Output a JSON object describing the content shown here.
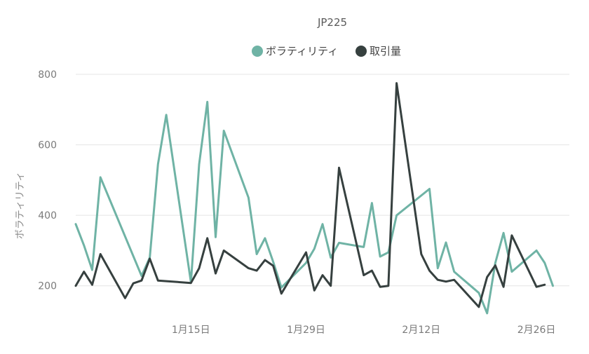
{
  "chart_data": {
    "type": "line",
    "title": "JP225",
    "xlabel": "",
    "ylabel": "ボラティリティ",
    "ylim": [
      100,
      820
    ],
    "yticks": [
      200,
      400,
      600,
      800
    ],
    "xlim": [
      "2024-01-01",
      "2024-03-01"
    ],
    "xticks": [
      {
        "date": "2024-01-15",
        "label": "1月15日"
      },
      {
        "date": "2024-01-29",
        "label": "1月29日"
      },
      {
        "date": "2024-02-12",
        "label": "2月12日"
      },
      {
        "date": "2024-02-26",
        "label": "2月26日"
      }
    ],
    "grid": true,
    "legend_position": "top",
    "series": [
      {
        "name": "ボラティリティ",
        "color": "#6fb3a5",
        "points": [
          [
            "2024-01-01",
            375
          ],
          [
            "2024-01-02",
            315
          ],
          [
            "2024-01-03",
            245
          ],
          [
            "2024-01-04",
            508
          ],
          [
            "2024-01-09",
            228
          ],
          [
            "2024-01-10",
            280
          ],
          [
            "2024-01-11",
            545
          ],
          [
            "2024-01-12",
            685
          ],
          [
            "2024-01-15",
            210
          ],
          [
            "2024-01-16",
            545
          ],
          [
            "2024-01-17",
            722
          ],
          [
            "2024-01-18",
            338
          ],
          [
            "2024-01-19",
            640
          ],
          [
            "2024-01-22",
            450
          ],
          [
            "2024-01-23",
            290
          ],
          [
            "2024-01-24",
            335
          ],
          [
            "2024-01-25",
            268
          ],
          [
            "2024-01-26",
            195
          ],
          [
            "2024-01-29",
            265
          ],
          [
            "2024-01-30",
            305
          ],
          [
            "2024-01-31",
            375
          ],
          [
            "2024-02-01",
            280
          ],
          [
            "2024-02-02",
            322
          ],
          [
            "2024-02-05",
            310
          ],
          [
            "2024-02-06",
            435
          ],
          [
            "2024-02-07",
            283
          ],
          [
            "2024-02-08",
            295
          ],
          [
            "2024-02-09",
            400
          ],
          [
            "2024-02-13",
            475
          ],
          [
            "2024-02-14",
            250
          ],
          [
            "2024-02-15",
            323
          ],
          [
            "2024-02-16",
            240
          ],
          [
            "2024-02-19",
            180
          ],
          [
            "2024-02-20",
            122
          ],
          [
            "2024-02-21",
            265
          ],
          [
            "2024-02-22",
            350
          ],
          [
            "2024-02-23",
            240
          ],
          [
            "2024-02-26",
            300
          ],
          [
            "2024-02-27",
            265
          ],
          [
            "2024-02-28",
            200
          ]
        ]
      },
      {
        "name": "取引量",
        "color": "#36403f",
        "points": [
          [
            "2024-01-01",
            200
          ],
          [
            "2024-01-02",
            240
          ],
          [
            "2024-01-03",
            203
          ],
          [
            "2024-01-04",
            290
          ],
          [
            "2024-01-07",
            165
          ],
          [
            "2024-01-08",
            207
          ],
          [
            "2024-01-09",
            215
          ],
          [
            "2024-01-10",
            277
          ],
          [
            "2024-01-11",
            215
          ],
          [
            "2024-01-15",
            208
          ],
          [
            "2024-01-16",
            250
          ],
          [
            "2024-01-17",
            335
          ],
          [
            "2024-01-18",
            235
          ],
          [
            "2024-01-19",
            300
          ],
          [
            "2024-01-22",
            250
          ],
          [
            "2024-01-23",
            243
          ],
          [
            "2024-01-24",
            273
          ],
          [
            "2024-01-25",
            257
          ],
          [
            "2024-01-26",
            178
          ],
          [
            "2024-01-29",
            295
          ],
          [
            "2024-01-30",
            187
          ],
          [
            "2024-01-31",
            230
          ],
          [
            "2024-02-01",
            200
          ],
          [
            "2024-02-02",
            535
          ],
          [
            "2024-02-05",
            230
          ],
          [
            "2024-02-06",
            243
          ],
          [
            "2024-02-07",
            197
          ],
          [
            "2024-02-08",
            200
          ],
          [
            "2024-02-09",
            775
          ],
          [
            "2024-02-12",
            290
          ],
          [
            "2024-02-13",
            243
          ],
          [
            "2024-02-14",
            217
          ],
          [
            "2024-02-15",
            212
          ],
          [
            "2024-02-16",
            217
          ],
          [
            "2024-02-19",
            140
          ],
          [
            "2024-02-20",
            225
          ],
          [
            "2024-02-21",
            258
          ],
          [
            "2024-02-22",
            197
          ],
          [
            "2024-02-23",
            343
          ],
          [
            "2024-02-26",
            197
          ],
          [
            "2024-02-27",
            203
          ]
        ]
      }
    ]
  }
}
